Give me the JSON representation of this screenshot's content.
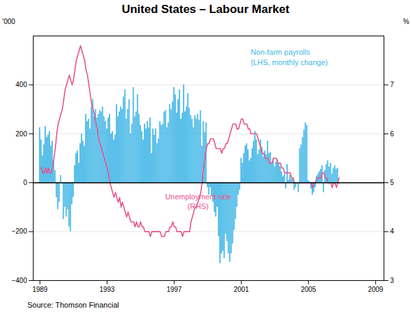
{
  "chart_data": {
    "type": "bar",
    "title": "United States – Labour Market",
    "caption": "Source: Thomson Financial",
    "ylabel": "'000",
    "y2label": "%",
    "annotations": [
      "Non-farm payrolls\n(LHS, monthly change)",
      "Unemployment rate\n(RHS)"
    ],
    "xlim": [
      1988.6,
      2009.5
    ],
    "xticks": [
      1989,
      1993,
      1997,
      2001,
      2005,
      2009
    ],
    "ylim": [
      -400,
      600
    ],
    "yticks": [
      -400,
      -200,
      0,
      200,
      400
    ],
    "y2lim": [
      3,
      8
    ],
    "y2ticks": [
      3,
      4,
      5,
      6,
      7
    ],
    "grid": true,
    "x": [
      1989,
      1989.0833,
      1989.1667,
      1989.25,
      1989.3333,
      1989.4167,
      1989.5,
      1989.5833,
      1989.6667,
      1989.75,
      1989.8333,
      1989.9167,
      1990,
      1990.0833,
      1990.1667,
      1990.25,
      1990.3333,
      1990.4167,
      1990.5,
      1990.5833,
      1990.6667,
      1990.75,
      1990.8333,
      1990.9167,
      1991,
      1991.0833,
      1991.1667,
      1991.25,
      1991.3333,
      1991.4167,
      1991.5,
      1991.5833,
      1991.6667,
      1991.75,
      1991.8333,
      1991.9167,
      1992,
      1992.0833,
      1992.1667,
      1992.25,
      1992.3333,
      1992.4167,
      1992.5,
      1992.5833,
      1992.6667,
      1992.75,
      1992.8333,
      1992.9167,
      1993,
      1993.0833,
      1993.1667,
      1993.25,
      1993.3333,
      1993.4167,
      1993.5,
      1993.5833,
      1993.6667,
      1993.75,
      1993.8333,
      1993.9167,
      1994,
      1994.0833,
      1994.1667,
      1994.25,
      1994.3333,
      1994.4167,
      1994.5,
      1994.5833,
      1994.6667,
      1994.75,
      1994.8333,
      1994.9167,
      1995,
      1995.0833,
      1995.1667,
      1995.25,
      1995.3333,
      1995.4167,
      1995.5,
      1995.5833,
      1995.6667,
      1995.75,
      1995.8333,
      1995.9167,
      1996,
      1996.0833,
      1996.1667,
      1996.25,
      1996.3333,
      1996.4167,
      1996.5,
      1996.5833,
      1996.6667,
      1996.75,
      1996.8333,
      1996.9167,
      1997,
      1997.0833,
      1997.1667,
      1997.25,
      1997.3333,
      1997.4167,
      1997.5,
      1997.5833,
      1997.6667,
      1997.75,
      1997.8333,
      1997.9167,
      1998,
      1998.0833,
      1998.1667,
      1998.25,
      1998.3333,
      1998.4167,
      1998.5,
      1998.5833,
      1998.6667,
      1998.75,
      1998.8333,
      1998.9167,
      1999,
      1999.0833,
      1999.1667,
      1999.25,
      1999.3333,
      1999.4167,
      1999.5,
      1999.5833,
      1999.6667,
      1999.75,
      1999.8333,
      1999.9167,
      2000,
      2000.0833,
      2000.1667,
      2000.25,
      2000.3333,
      2000.4167,
      2000.5,
      2000.5833,
      2000.6667,
      2000.75,
      2000.8333,
      2000.9167,
      2001,
      2001.0833,
      2001.1667,
      2001.25,
      2001.3333,
      2001.4167,
      2001.5,
      2001.5833,
      2001.6667,
      2001.75,
      2001.8333,
      2001.9167,
      2002,
      2002.0833,
      2002.1667,
      2002.25,
      2002.3333,
      2002.4167,
      2002.5,
      2002.5833,
      2002.6667,
      2002.75,
      2002.8333,
      2002.9167,
      2003,
      2003.0833,
      2003.1667,
      2003.25,
      2003.3333,
      2003.4167,
      2003.5,
      2003.5833,
      2003.6667,
      2003.75,
      2003.8333,
      2003.9167,
      2004,
      2004.0833,
      2004.1667,
      2004.25,
      2004.3333,
      2004.4167,
      2004.5,
      2004.5833,
      2004.6667,
      2004.75,
      2004.8333,
      2004.9167,
      2005,
      2005.0833,
      2005.1667,
      2005.25,
      2005.3333,
      2005.4167,
      2005.5,
      2005.5833,
      2005.6667,
      2005.75,
      2005.8333,
      2005.9167,
      2006,
      2006.0833,
      2006.1667,
      2006.25,
      2006.3333,
      2006.4167,
      2006.5,
      2006.5833,
      2006.6667,
      2006.75,
      2006.8333
    ],
    "series": [
      {
        "name": "Non-farm payrolls",
        "type": "bar",
        "color": "#41b6e6",
        "values": [
          225,
          175,
          110,
          155,
          230,
          185,
          195,
          210,
          150,
          170,
          90,
          50,
          -60,
          -110,
          -80,
          30,
          -5,
          -150,
          -100,
          -140,
          -110,
          -180,
          -200,
          -90,
          -60,
          70,
          120,
          130,
          80,
          160,
          200,
          170,
          150,
          280,
          250,
          260,
          220,
          310,
          340,
          270,
          300,
          265,
          280,
          295,
          290,
          310,
          270,
          250,
          220,
          265,
          280,
          200,
          210,
          175,
          195,
          320,
          270,
          290,
          310,
          300,
          350,
          380,
          260,
          300,
          340,
          200,
          240,
          390,
          270,
          290,
          360,
          280,
          235,
          210,
          175,
          240,
          220,
          250,
          225,
          265,
          120,
          220,
          195,
          220,
          160,
          180,
          250,
          235,
          240,
          290,
          295,
          225,
          245,
          320,
          300,
          330,
          390,
          360,
          285,
          340,
          380,
          260,
          285,
          400,
          290,
          310,
          365,
          305,
          275,
          260,
          225,
          275,
          260,
          280,
          255,
          295,
          150,
          250,
          205,
          245,
          -20,
          -50,
          -20,
          -55,
          -80,
          -120,
          -140,
          -100,
          -220,
          -330,
          -290,
          -280,
          -310,
          -210,
          -240,
          -290,
          -325,
          -290,
          -250,
          -195,
          -150,
          -100,
          -50,
          -30,
          100,
          80,
          120,
          150,
          160,
          135,
          90,
          100,
          140,
          170,
          210,
          175,
          115,
          135,
          175,
          145,
          105,
          130,
          115,
          170,
          120,
          125,
          80,
          100,
          65,
          85,
          95,
          75,
          65,
          45,
          25,
          35,
          -25,
          75,
          10,
          30,
          15,
          20,
          -30,
          -20,
          -5,
          -40,
          140,
          155,
          185,
          215,
          245,
          235,
          10,
          5,
          -25,
          -50,
          -40,
          -20,
          25,
          35,
          45,
          55,
          70,
          -40,
          50,
          75,
          90,
          65,
          80,
          35,
          60,
          70,
          55,
          60,
          -5
        ]
      },
      {
        "name": "Unemployment rate",
        "type": "line",
        "axis": "y2",
        "color": "#e8538f",
        "values": [
          5.3,
          5.3,
          5.2,
          5.2,
          5.3,
          5.2,
          5.3,
          5.2,
          5.2,
          5.3,
          5.5,
          5.7,
          6.0,
          6.2,
          6.3,
          6.4,
          6.5,
          6.7,
          6.9,
          7.0,
          7.1,
          7.2,
          7.1,
          7.0,
          7.1,
          7.3,
          7.5,
          7.6,
          7.7,
          7.8,
          7.7,
          7.6,
          7.5,
          7.3,
          7.2,
          7.0,
          6.8,
          6.6,
          6.5,
          6.4,
          6.2,
          6.1,
          5.9,
          5.8,
          5.7,
          5.6,
          5.5,
          5.4,
          5.3,
          5.2,
          5.0,
          4.9,
          4.8,
          4.7,
          4.8,
          4.7,
          4.6,
          4.7,
          4.5,
          4.6,
          4.5,
          4.4,
          4.3,
          4.4,
          4.3,
          4.2,
          4.2,
          4.2,
          4.1,
          4.2,
          4.1,
          4.1,
          4.2,
          4.1,
          4.1,
          4.0,
          4.0,
          4.0,
          4.0,
          3.9,
          4.0,
          4.0,
          4.0,
          4.0,
          4.0,
          4.0,
          4.0,
          3.9,
          3.9,
          3.9,
          4.0,
          4.0,
          4.0,
          4.1,
          4.1,
          4.2,
          4.1,
          4.1,
          4.0,
          4.0,
          4.0,
          4.0,
          3.9,
          4.0,
          4.0,
          4.0,
          4.0,
          4.0,
          4.2,
          4.3,
          4.4,
          4.5,
          4.5,
          4.6,
          4.7,
          4.8,
          5.0,
          5.3,
          5.5,
          5.7,
          5.8,
          5.8,
          5.9,
          5.9,
          5.9,
          5.8,
          5.7,
          5.7,
          5.7,
          5.7,
          5.6,
          5.7,
          5.7,
          5.8,
          5.8,
          5.9,
          6.0,
          6.1,
          6.2,
          6.2,
          6.2,
          6.1,
          6.1,
          6.2,
          6.3,
          6.3,
          6.2,
          6.2,
          6.2,
          6.1,
          6.1,
          6.0,
          6.0,
          6.0,
          6.0,
          6.0,
          5.9,
          5.8,
          5.7,
          5.6,
          5.6,
          5.5,
          5.5,
          5.5,
          5.4,
          5.4,
          5.4,
          5.5,
          5.5,
          5.5,
          5.4,
          5.4,
          5.4,
          5.3,
          5.3,
          5.2,
          5.2,
          5.2,
          5.2,
          5.2,
          5.1,
          5.1,
          5.0,
          5.0,
          5.0,
          5.0,
          5.0,
          5.0,
          5.0,
          5.0,
          5.0,
          5.0,
          5.0,
          5.0,
          5.0,
          4.9,
          5.0,
          5.0,
          5.1,
          5.1,
          5.1,
          5.1,
          5.2,
          5.2,
          5.1,
          5.1,
          5.0,
          5.0,
          5.0,
          4.9,
          5.0,
          5.0,
          4.9,
          5.0,
          5.1
        ]
      }
    ]
  }
}
